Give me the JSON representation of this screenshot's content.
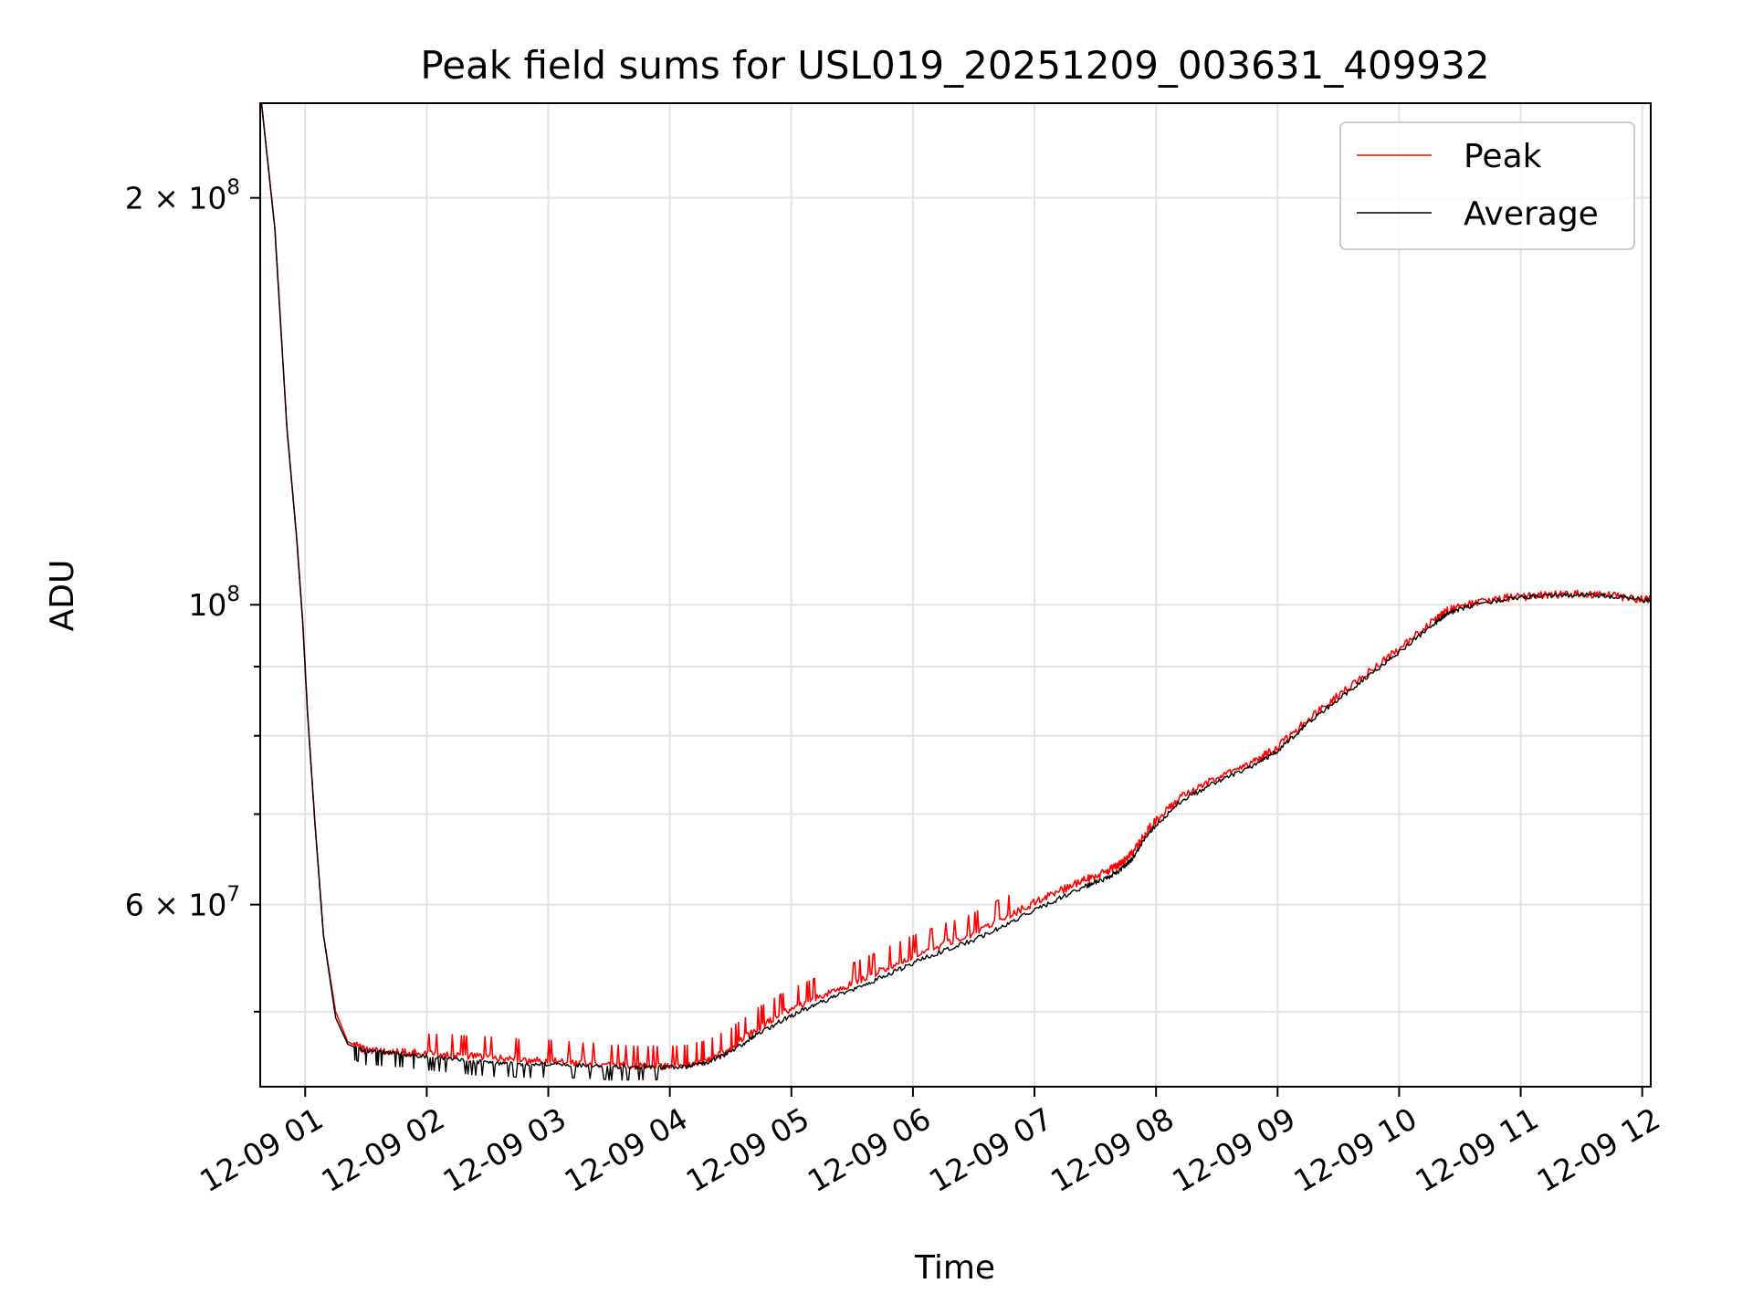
{
  "chart_data": {
    "type": "line",
    "title": "Peak field sums for USL019_20251209_003631_409932",
    "xlabel": "Time",
    "ylabel": "ADU",
    "yscale": "log",
    "ylim": [
      44000000,
      235000000
    ],
    "xlim": [
      0.63,
      12.07
    ],
    "grid": true,
    "legend_position": "top-right",
    "x_ticks": [
      {
        "value": 1,
        "label": "12-09 01"
      },
      {
        "value": 2,
        "label": "12-09 02"
      },
      {
        "value": 3,
        "label": "12-09 03"
      },
      {
        "value": 4,
        "label": "12-09 04"
      },
      {
        "value": 5,
        "label": "12-09 05"
      },
      {
        "value": 6,
        "label": "12-09 06"
      },
      {
        "value": 7,
        "label": "12-09 07"
      },
      {
        "value": 8,
        "label": "12-09 08"
      },
      {
        "value": 9,
        "label": "12-09 09"
      },
      {
        "value": 10,
        "label": "12-09 10"
      },
      {
        "value": 11,
        "label": "12-09 11"
      },
      {
        "value": 12,
        "label": "12-09 12"
      }
    ],
    "y_major_ticks": [
      {
        "value": 60000000,
        "base": "6 × 10",
        "exp": "7"
      },
      {
        "value": 100000000,
        "base": "10",
        "exp": "8"
      },
      {
        "value": 200000000,
        "base": "2 × 10",
        "exp": "8"
      }
    ],
    "y_minor_ticks": [
      50000000,
      70000000,
      80000000,
      90000000
    ],
    "series": [
      {
        "name": "Peak",
        "color": "#ff0000",
        "x": [
          0.63,
          0.75,
          0.85,
          0.93,
          0.98,
          1.02,
          1.08,
          1.15,
          1.25,
          1.35,
          1.5,
          1.7,
          1.9,
          2.2,
          2.5,
          2.8,
          3.1,
          3.5,
          3.8,
          4.1,
          4.3,
          4.5,
          4.7,
          4.95,
          5.2,
          5.5,
          5.8,
          6.1,
          6.5,
          6.8,
          7.1,
          7.4,
          7.6,
          7.7,
          7.8,
          7.95,
          8.2,
          8.5,
          8.8,
          9.0,
          9.3,
          9.6,
          9.95,
          10.3,
          10.4,
          10.6,
          10.9,
          11.2,
          11.5,
          11.8,
          12.07
        ],
        "y": [
          240000000,
          190000000,
          135000000,
          112000000,
          97000000,
          83000000,
          69000000,
          57000000,
          50000000,
          47500000,
          46800000,
          46700000,
          46600000,
          46500000,
          46300000,
          46100000,
          46000000,
          45700000,
          45600000,
          45600000,
          46000000,
          47000000,
          48500000,
          50000000,
          51200000,
          52500000,
          54000000,
          55500000,
          57200000,
          59000000,
          60800000,
          62500000,
          63500000,
          64300000,
          65500000,
          68500000,
          72000000,
          74500000,
          76500000,
          78500000,
          83000000,
          87000000,
          92000000,
          97500000,
          99000000,
          100200000,
          101200000,
          101700000,
          101800000,
          101500000,
          100800000
        ]
      },
      {
        "name": "Average",
        "color": "#000000",
        "x": [
          0.63,
          0.75,
          0.85,
          0.93,
          0.98,
          1.02,
          1.08,
          1.15,
          1.25,
          1.35,
          1.5,
          1.7,
          1.9,
          2.2,
          2.5,
          2.8,
          3.1,
          3.5,
          3.8,
          4.1,
          4.3,
          4.5,
          4.7,
          4.95,
          5.2,
          5.5,
          5.8,
          6.1,
          6.5,
          6.8,
          7.1,
          7.4,
          7.6,
          7.7,
          7.8,
          7.95,
          8.2,
          8.5,
          8.8,
          9.0,
          9.3,
          9.6,
          9.95,
          10.3,
          10.4,
          10.6,
          10.9,
          11.2,
          11.5,
          11.8,
          12.07
        ],
        "y": [
          240000000,
          190000000,
          135000000,
          112000000,
          97000000,
          83000000,
          69000000,
          57000000,
          49500000,
          47300000,
          46700000,
          46600000,
          46400000,
          46100000,
          45800000,
          45700000,
          45700000,
          45500000,
          45500000,
          45500000,
          45800000,
          46700000,
          48000000,
          49400000,
          50600000,
          51900000,
          53300000,
          54800000,
          56500000,
          58200000,
          60000000,
          61800000,
          62800000,
          63600000,
          64800000,
          68000000,
          71500000,
          74000000,
          76000000,
          78000000,
          82500000,
          86500000,
          91500000,
          97000000,
          98500000,
          99900000,
          101000000,
          101600000,
          101700000,
          101400000,
          100600000
        ]
      }
    ]
  }
}
